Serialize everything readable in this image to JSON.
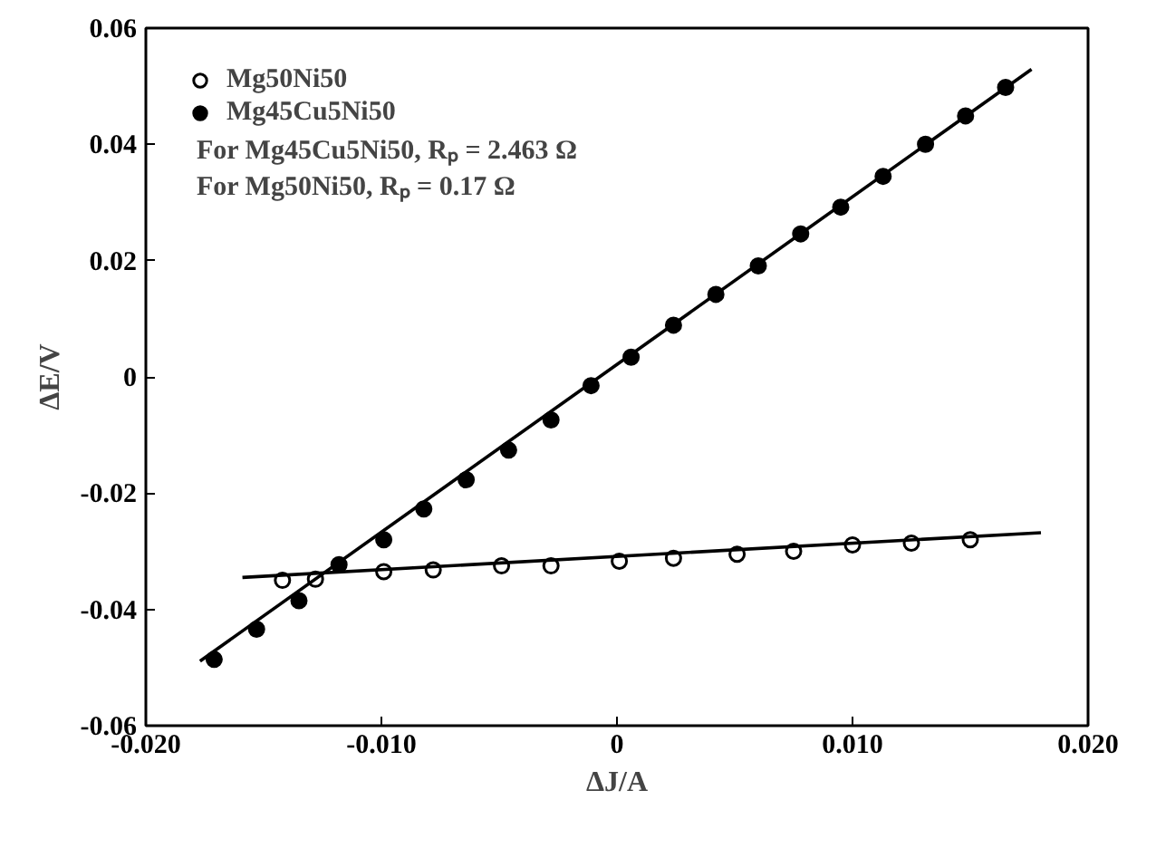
{
  "chart_data": {
    "type": "scatter",
    "xlabel": "ΔJ/A",
    "ylabel": "ΔE/V",
    "xlim": [
      -0.02,
      0.02
    ],
    "ylim": [
      -0.06,
      0.06
    ],
    "xticks": [
      {
        "value": -0.02,
        "label": "-0.020"
      },
      {
        "value": -0.01,
        "label": "-0.010"
      },
      0,
      {
        "value": 0.01,
        "label": "0.010"
      },
      {
        "value": 0.02,
        "label": "0.020"
      }
    ],
    "yticks": [
      -0.06,
      -0.04,
      -0.02,
      0,
      0.02,
      0.04,
      0.06
    ],
    "grid": false,
    "legend": "top left",
    "series": [
      {
        "name": "Mg50Ni50",
        "marker": "circle",
        "color": "#ffffff",
        "x": [
          -0.0142,
          -0.0128,
          -0.0099,
          -0.0078,
          -0.0049,
          -0.0028,
          0.0001,
          0.0024,
          0.0051,
          0.0075,
          0.01,
          0.0125,
          0.015
        ],
        "values": [
          -0.035,
          -0.0348,
          -0.0335,
          -0.0332,
          -0.0325,
          -0.0325,
          -0.0317,
          -0.0312,
          -0.0305,
          -0.03,
          -0.0289,
          -0.0286,
          -0.028
        ]
      },
      {
        "name": "Mg45Cu5Ni50",
        "marker": "circle",
        "color": "#000000",
        "x": [
          -0.0171,
          -0.0153,
          -0.0135,
          -0.0118,
          -0.0099,
          -0.0082,
          -0.0064,
          -0.0046,
          -0.0028,
          -0.0011,
          0.0006,
          0.0024,
          0.0042,
          0.006,
          0.0078,
          0.0095,
          0.0113,
          0.0131,
          0.0148,
          0.0165
        ],
        "values": [
          -0.0486,
          -0.0434,
          -0.0385,
          -0.0323,
          -0.028,
          -0.0227,
          -0.0177,
          -0.0126,
          -0.0074,
          -0.0015,
          0.0034,
          0.0089,
          0.0142,
          0.0191,
          0.0246,
          0.0292,
          0.0345,
          0.04,
          0.0449,
          0.0498
        ]
      },
      {
        "type": "line",
        "color": "#000000",
        "x": [
          -0.0159,
          0.018
        ],
        "values": [
          -0.0345,
          -0.0268
        ]
      },
      {
        "type": "line",
        "color": "#000000",
        "x": [
          -0.0177,
          0.0176
        ],
        "values": [
          -0.0489,
          0.0529
        ]
      }
    ],
    "annotations": [
      "For Mg45Cu5Ni50,  Rₚ = 2.463 Ω",
      "For Mg50Ni50,  Rₚ = 0.17 Ω"
    ]
  }
}
